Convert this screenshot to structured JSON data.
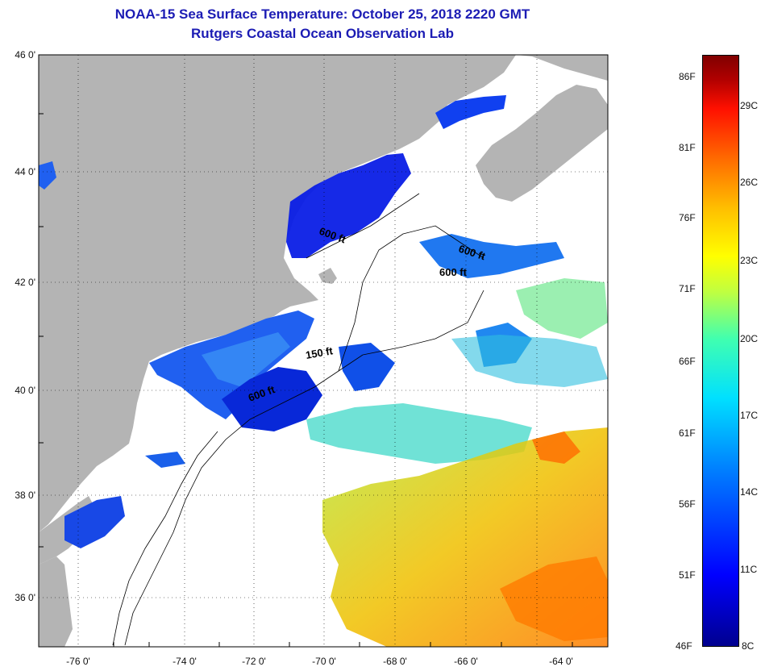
{
  "title": {
    "line1": "NOAA-15 Sea Surface Temperature:  October 25, 2018 2220 GMT",
    "line2": "Rutgers Coastal Ocean Observation Lab"
  },
  "map": {
    "lat_labels": [
      "46 0'",
      "44 0'",
      "42 0'",
      "40 0'",
      "38 0'",
      "36 0'"
    ],
    "lon_labels": [
      "-76 0'",
      "-74 0'",
      "-72 0'",
      "-70 0'",
      "-68 0'",
      "-66 0'",
      "-64 0'"
    ],
    "contour_labels": [
      "600 ft",
      "600 ft",
      "600 ft",
      "150 ft",
      "600 ft"
    ],
    "colors": {
      "land": "#b4b4b4",
      "ocean": "#ffffff",
      "cold": "#0a1ee6",
      "warm": "#ff8c00"
    }
  },
  "colorbar": {
    "fahrenheit": [
      "86F",
      "81F",
      "76F",
      "71F",
      "66F",
      "61F",
      "56F",
      "51F",
      "46F"
    ],
    "celsius": [
      "29C",
      "26C",
      "23C",
      "20C",
      "17C",
      "14C",
      "11C",
      "8C"
    ]
  }
}
